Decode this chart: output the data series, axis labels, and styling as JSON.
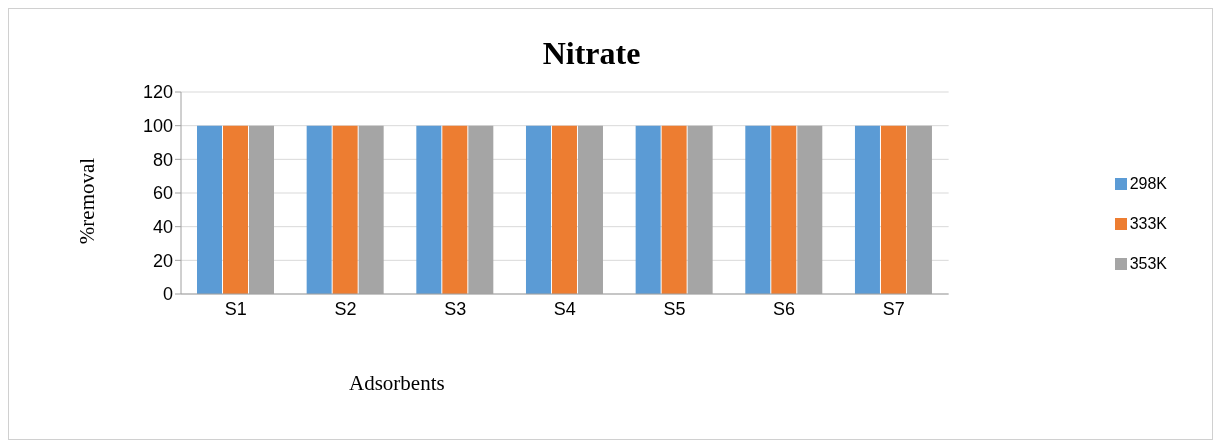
{
  "chart_data": {
    "type": "bar",
    "title": "Nitrate",
    "xlabel": "Adsorbents",
    "ylabel": "%removal",
    "categories": [
      "S1",
      "S2",
      "S3",
      "S4",
      "S5",
      "S6",
      "S7"
    ],
    "series": [
      {
        "name": "298K",
        "color": "#5b9bd5",
        "values": [
          100,
          100,
          100,
          100,
          100,
          100,
          100
        ]
      },
      {
        "name": "333K",
        "color": "#ed7d31",
        "values": [
          100,
          100,
          100,
          100,
          100,
          100,
          100
        ]
      },
      {
        "name": "353K",
        "color": "#a5a5a5",
        "values": [
          100,
          100,
          100,
          100,
          100,
          100,
          100
        ]
      }
    ],
    "ylim": [
      0,
      120
    ],
    "yticks": [
      0,
      20,
      40,
      60,
      80,
      100,
      120
    ],
    "grid": "y",
    "legend": "right"
  }
}
